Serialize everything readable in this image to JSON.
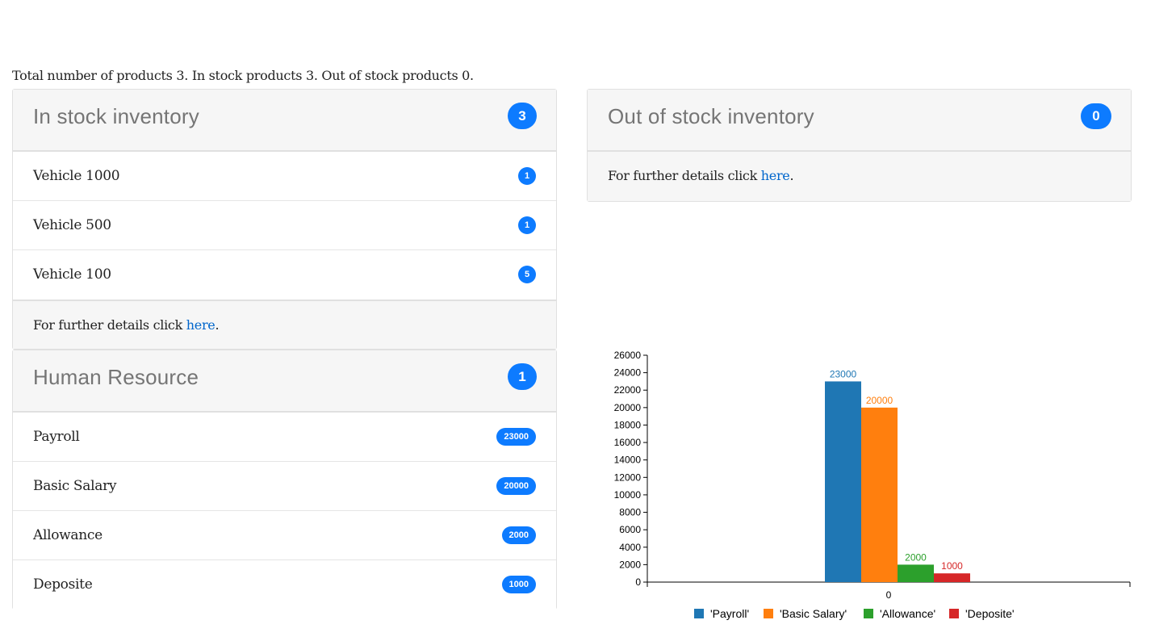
{
  "summary": {
    "prefix": "Total number of products ",
    "total": "3",
    "mid1": ". In stock products ",
    "in_stock": "3",
    "mid2": ". Out of stock products ",
    "out_stock": "0",
    "suffix": "."
  },
  "in_stock_panel": {
    "title": "In stock inventory",
    "count": "3",
    "items": [
      {
        "label": "Vehicle 1000",
        "count": "1"
      },
      {
        "label": "Vehicle 500",
        "count": "1"
      },
      {
        "label": "Vehicle 100",
        "count": "5"
      }
    ],
    "footer_text": "For further details click ",
    "footer_link": "here",
    "footer_end": "."
  },
  "out_stock_panel": {
    "title": "Out of stock inventory",
    "count": "0",
    "footer_text": "For further details click ",
    "footer_link": "here",
    "footer_end": "."
  },
  "hr_panel": {
    "title": "Human Resource",
    "count": "1",
    "items": [
      {
        "label": "Payroll",
        "value": "23000"
      },
      {
        "label": "Basic Salary",
        "value": "20000"
      },
      {
        "label": "Allowance",
        "value": "2000"
      },
      {
        "label": "Deposite",
        "value": "1000"
      }
    ]
  },
  "colors": {
    "badge": "#0d7bff",
    "link": "#0066cc"
  },
  "chart_data": {
    "type": "bar",
    "categories": [
      "0"
    ],
    "series": [
      {
        "name": "'Payroll'",
        "values": [
          23000
        ],
        "color": "#1f77b4"
      },
      {
        "name": "'Basic Salary'",
        "values": [
          20000
        ],
        "color": "#ff7f0e"
      },
      {
        "name": "'Allowance'",
        "values": [
          2000
        ],
        "color": "#2ca02c"
      },
      {
        "name": "'Deposite'",
        "values": [
          1000
        ],
        "color": "#d62728"
      }
    ],
    "yticks": [
      0,
      2000,
      4000,
      6000,
      8000,
      10000,
      12000,
      14000,
      16000,
      18000,
      20000,
      22000,
      24000,
      26000
    ],
    "ylim": [
      0,
      26000
    ],
    "legend": "bottom",
    "data_labels": true,
    "grid": false
  }
}
